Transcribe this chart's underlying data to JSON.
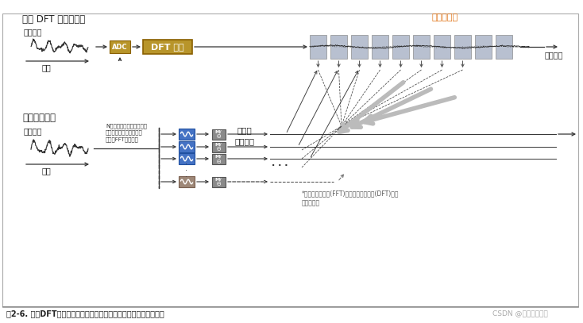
{
  "bg_color": "#ffffff",
  "fig_caption": "图2-6. 基于DFT的频谱分析仪及采用带通滤波器群的同等实现方案。",
  "watermark": "CSDN @阳光开朗男孩",
  "top_section_title": "基于 DFT 的频谱分析",
  "bottom_section_title": "同等滤波器群",
  "memory_label": "存储器内容",
  "time_sample_label": "时间样点",
  "input_signal_label": "输入信号",
  "time_label": "时间",
  "adc_label": "ADC",
  "dft_label": "DFT 引擎",
  "complex_detect_label": "复杂的\n包络检测",
  "footnote": "*快速傅立叶变换(FFT)是离散傅立叶变换(DFT)的常\n见实现方式",
  "filter_note": "N个等通滤波器组成的群，\n这些滤波器的中心之间相\n距一个FFT频率带宽",
  "adc_color": "#b8952a",
  "dft_color": "#b8952a",
  "filter_blue_color": "#4472c4",
  "filter_brown_color": "#9e8878",
  "moq_color": "#8a8a8a",
  "memory_bar_color": "#b8c0d0",
  "arrow_dark": "#333333",
  "big_arrow_color": "#aaaaaa",
  "memory_label_color": "#e07010",
  "caption_color": "#222222",
  "watermark_color": "#aaaaaa"
}
